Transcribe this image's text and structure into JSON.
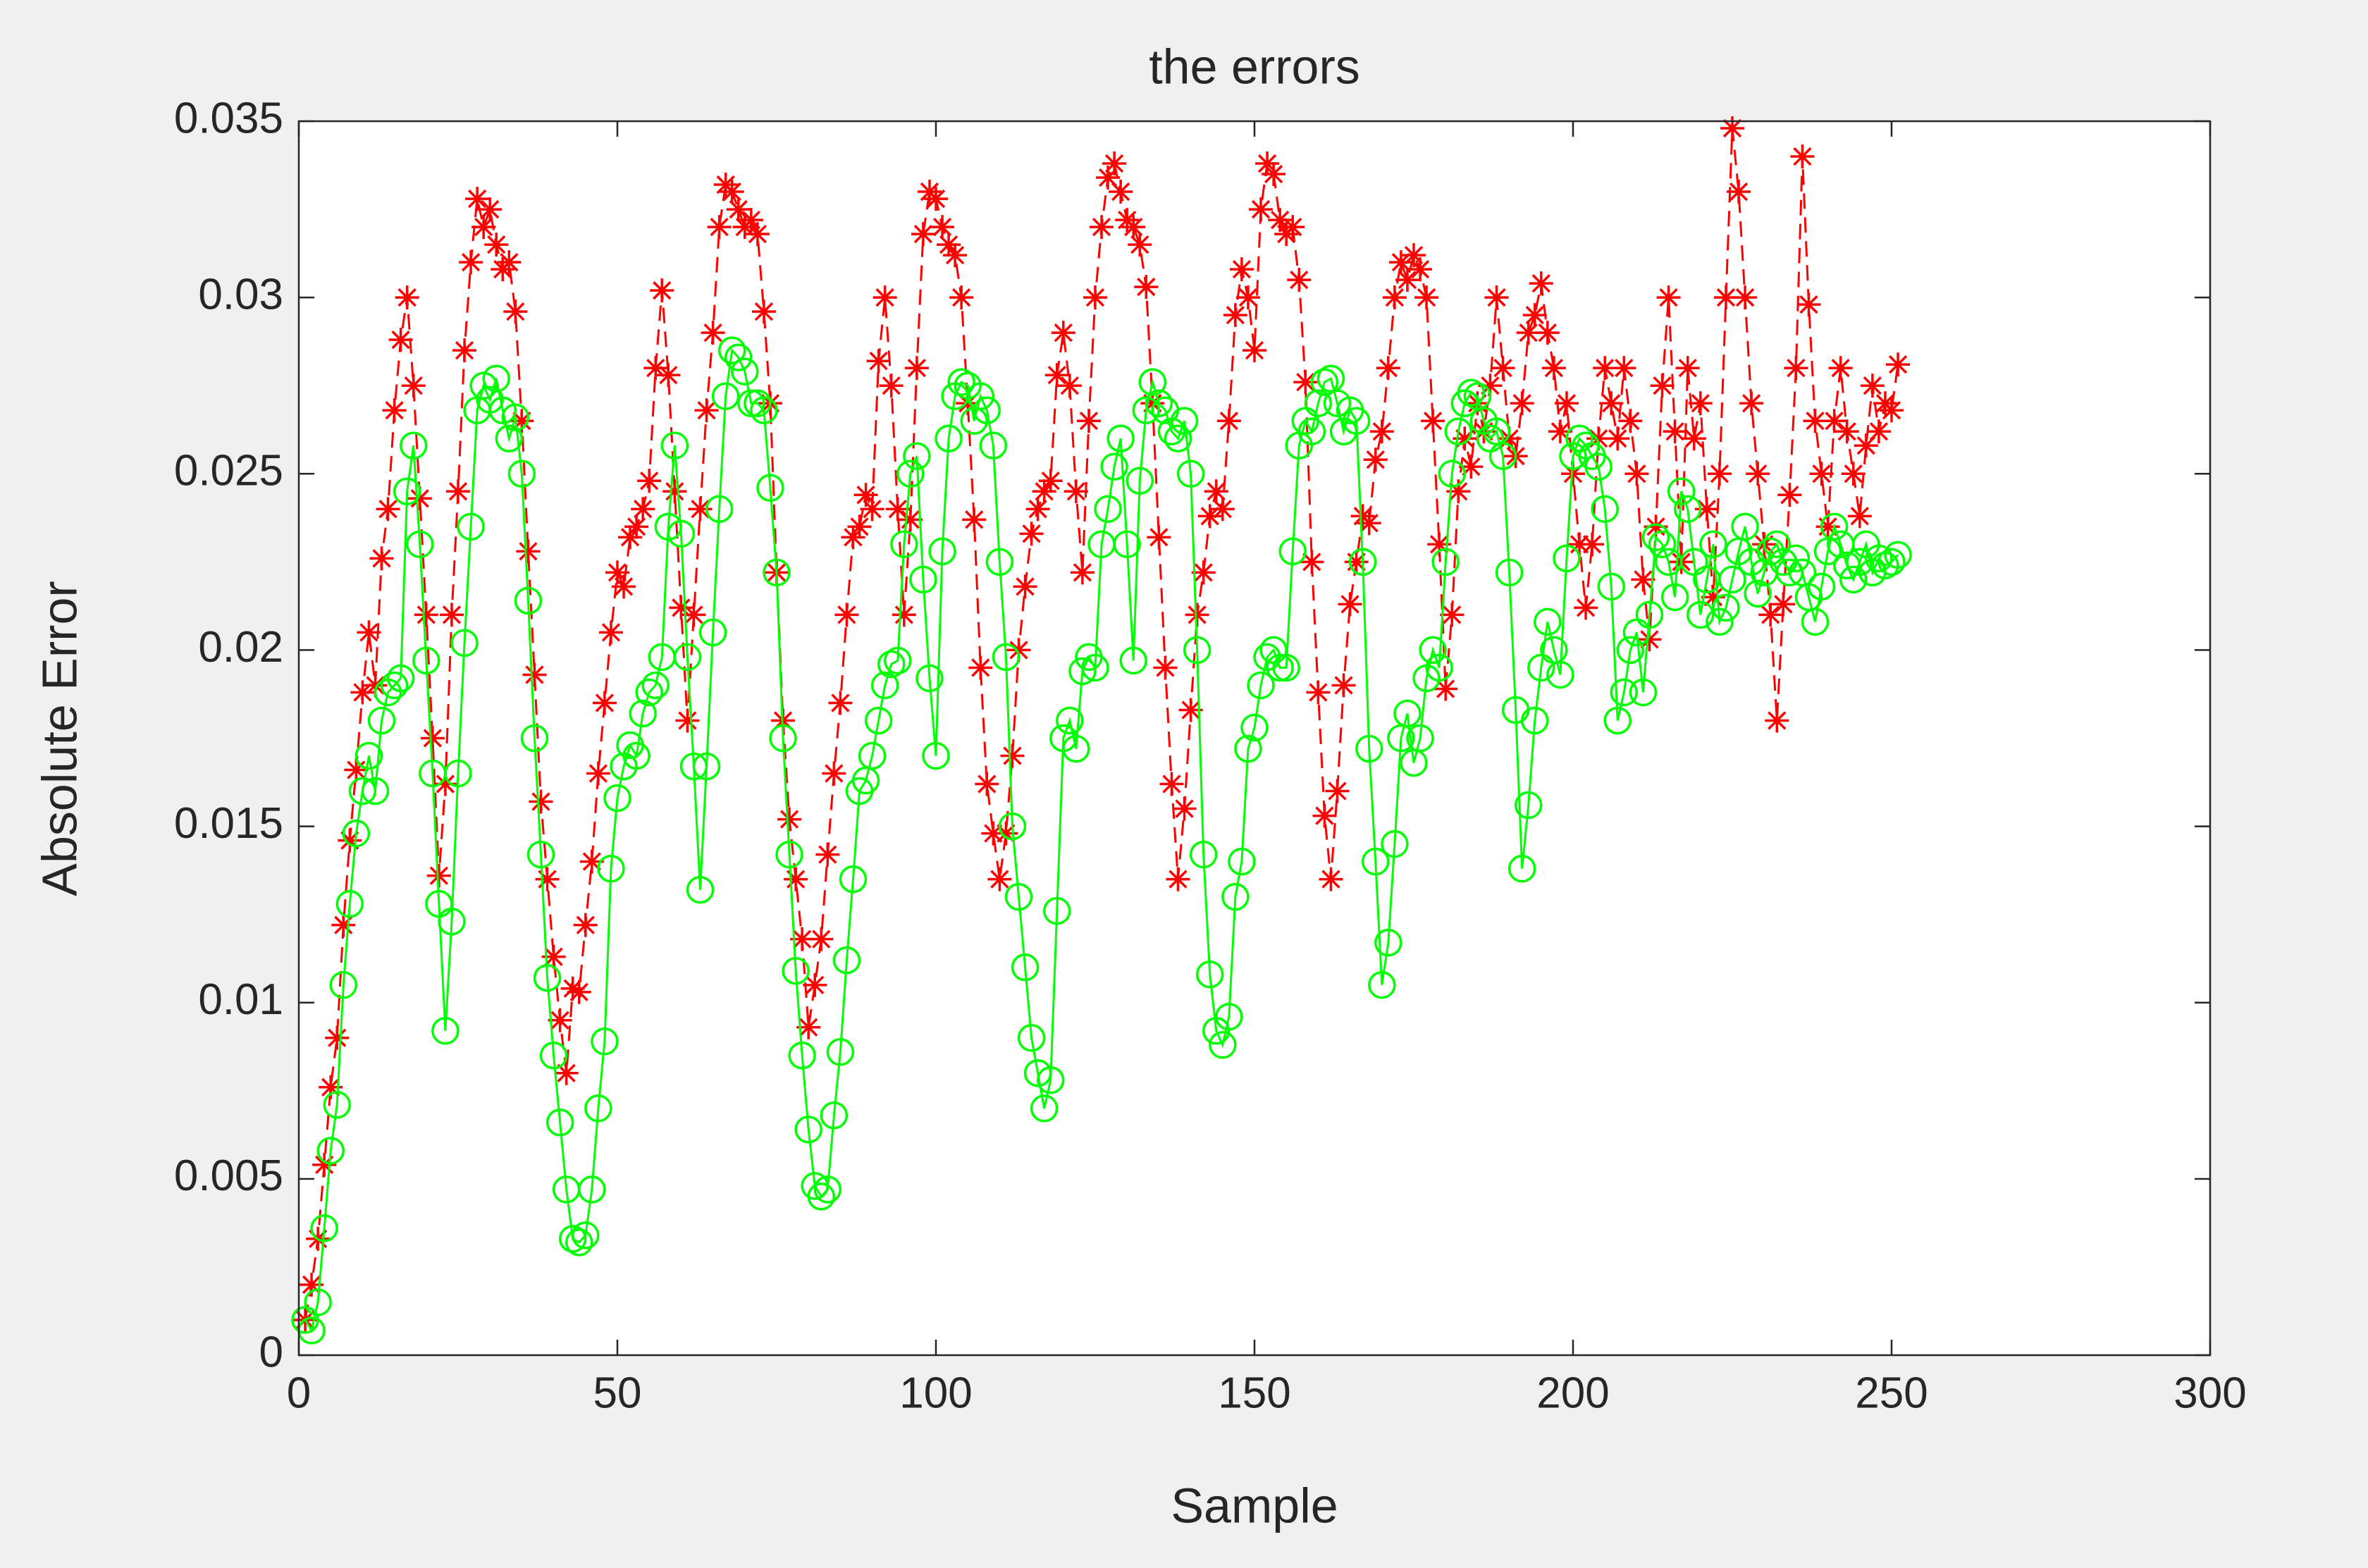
{
  "chart_data": {
    "type": "line",
    "title": "the errors",
    "xlabel": "Sample",
    "ylabel": "Absolute Error",
    "xlim": [
      0,
      300
    ],
    "ylim": [
      0,
      0.035
    ],
    "xticks": [
      0,
      50,
      100,
      150,
      200,
      250,
      300
    ],
    "yticks": [
      0,
      0.005,
      0.01,
      0.015,
      0.02,
      0.025,
      0.03,
      0.035
    ],
    "x": [
      1,
      2,
      3,
      4,
      5,
      6,
      7,
      8,
      9,
      10,
      11,
      12,
      13,
      14,
      15,
      16,
      17,
      18,
      19,
      20,
      21,
      22,
      23,
      24,
      25,
      26,
      27,
      28,
      29,
      30,
      31,
      32,
      33,
      34,
      35,
      36,
      37,
      38,
      39,
      40,
      41,
      42,
      43,
      44,
      45,
      46,
      47,
      48,
      49,
      50,
      51,
      52,
      53,
      54,
      55,
      56,
      57,
      58,
      59,
      60,
      61,
      62,
      63,
      64,
      65,
      66,
      67,
      68,
      69,
      70,
      71,
      72,
      73,
      74,
      75,
      76,
      77,
      78,
      79,
      80,
      81,
      82,
      83,
      84,
      85,
      86,
      87,
      88,
      89,
      90,
      91,
      92,
      93,
      94,
      95,
      96,
      97,
      98,
      99,
      100,
      101,
      102,
      103,
      104,
      105,
      106,
      107,
      108,
      109,
      110,
      111,
      112,
      113,
      114,
      115,
      116,
      117,
      118,
      119,
      120,
      121,
      122,
      123,
      124,
      125,
      126,
      127,
      128,
      129,
      130,
      131,
      132,
      133,
      134,
      135,
      136,
      137,
      138,
      139,
      140,
      141,
      142,
      143,
      144,
      145,
      146,
      147,
      148,
      149,
      150,
      151,
      152,
      153,
      154,
      155,
      156,
      157,
      158,
      159,
      160,
      161,
      162,
      163,
      164,
      165,
      166,
      167,
      168,
      169,
      170,
      171,
      172,
      173,
      174,
      175,
      176,
      177,
      178,
      179,
      180,
      181,
      182,
      183,
      184,
      185,
      186,
      187,
      188,
      189,
      190,
      191,
      192,
      193,
      194,
      195,
      196,
      197,
      198,
      199,
      200,
      201,
      202,
      203,
      204,
      205,
      206,
      207,
      208,
      209,
      210,
      211,
      212,
      213,
      214,
      215,
      216,
      217,
      218,
      219,
      220,
      221,
      222,
      223,
      224,
      225,
      226,
      227,
      228,
      229,
      230,
      231,
      232,
      233,
      234,
      235,
      236,
      237,
      238,
      239,
      240,
      241,
      242,
      243,
      244,
      245,
      246,
      247,
      248,
      249,
      250,
      251
    ],
    "series": [
      {
        "color": "#ff0000",
        "marker": "star",
        "dashed": true,
        "values": [
          0.001,
          0.002,
          0.0033,
          0.0054,
          0.0076,
          0.009,
          0.0122,
          0.0146,
          0.0166,
          0.0188,
          0.0205,
          0.019,
          0.0226,
          0.024,
          0.0268,
          0.0288,
          0.03,
          0.0275,
          0.0243,
          0.021,
          0.0175,
          0.0136,
          0.0162,
          0.021,
          0.0245,
          0.0285,
          0.031,
          0.0328,
          0.032,
          0.0325,
          0.0315,
          0.0308,
          0.031,
          0.0296,
          0.0265,
          0.0228,
          0.0193,
          0.0157,
          0.0135,
          0.0113,
          0.0095,
          0.008,
          0.0104,
          0.0103,
          0.0122,
          0.014,
          0.0165,
          0.0185,
          0.0205,
          0.0222,
          0.0218,
          0.0232,
          0.0235,
          0.024,
          0.0248,
          0.028,
          0.0302,
          0.0278,
          0.0245,
          0.0212,
          0.018,
          0.021,
          0.024,
          0.0268,
          0.029,
          0.032,
          0.0332,
          0.033,
          0.0325,
          0.032,
          0.0322,
          0.0318,
          0.0296,
          0.027,
          0.0222,
          0.018,
          0.0152,
          0.0135,
          0.0118,
          0.0093,
          0.0105,
          0.0118,
          0.0142,
          0.0165,
          0.0185,
          0.021,
          0.0232,
          0.0235,
          0.0244,
          0.024,
          0.0282,
          0.03,
          0.0275,
          0.024,
          0.021,
          0.0237,
          0.028,
          0.0318,
          0.033,
          0.0328,
          0.032,
          0.0315,
          0.0312,
          0.03,
          0.027,
          0.0237,
          0.0195,
          0.0162,
          0.0148,
          0.0135,
          0.0148,
          0.017,
          0.02,
          0.0218,
          0.0233,
          0.024,
          0.0245,
          0.0248,
          0.0278,
          0.029,
          0.0275,
          0.0245,
          0.0222,
          0.0265,
          0.03,
          0.032,
          0.0334,
          0.0338,
          0.033,
          0.0322,
          0.032,
          0.0315,
          0.0303,
          0.027,
          0.0232,
          0.0195,
          0.0162,
          0.0135,
          0.0155,
          0.0183,
          0.021,
          0.0222,
          0.0238,
          0.0245,
          0.024,
          0.0265,
          0.0295,
          0.0308,
          0.03,
          0.0285,
          0.0325,
          0.0338,
          0.0335,
          0.0322,
          0.0318,
          0.032,
          0.0305,
          0.0276,
          0.0225,
          0.0188,
          0.0153,
          0.0135,
          0.016,
          0.019,
          0.0213,
          0.0225,
          0.0238,
          0.0236,
          0.0254,
          0.0262,
          0.028,
          0.03,
          0.031,
          0.0305,
          0.0312,
          0.0308,
          0.03,
          0.0265,
          0.023,
          0.0189,
          0.021,
          0.0245,
          0.026,
          0.0252,
          0.027,
          0.0262,
          0.0275,
          0.03,
          0.028,
          0.026,
          0.0255,
          0.027,
          0.029,
          0.0295,
          0.0304,
          0.029,
          0.028,
          0.0262,
          0.027,
          0.025,
          0.023,
          0.0212,
          0.023,
          0.026,
          0.028,
          0.027,
          0.026,
          0.028,
          0.0265,
          0.025,
          0.022,
          0.0203,
          0.0235,
          0.0275,
          0.03,
          0.0262,
          0.0225,
          0.028,
          0.026,
          0.027,
          0.024,
          0.0215,
          0.025,
          0.03,
          0.0348,
          0.033,
          0.03,
          0.027,
          0.025,
          0.023,
          0.021,
          0.018,
          0.0213,
          0.0244,
          0.028,
          0.034,
          0.0298,
          0.0265,
          0.025,
          0.0235,
          0.0265,
          0.028,
          0.0262,
          0.025,
          0.0238,
          0.0258,
          0.0275,
          0.0262,
          0.027,
          0.0268,
          0.0281
        ]
      },
      {
        "color": "#00ff00",
        "marker": "circle",
        "dashed": false,
        "values": [
          0.001,
          0.0007,
          0.0015,
          0.0036,
          0.0058,
          0.0071,
          0.0105,
          0.0128,
          0.0148,
          0.016,
          0.017,
          0.016,
          0.018,
          0.0188,
          0.019,
          0.0192,
          0.0245,
          0.0258,
          0.023,
          0.0197,
          0.0165,
          0.0128,
          0.0092,
          0.0123,
          0.0165,
          0.0202,
          0.0235,
          0.0268,
          0.0275,
          0.0271,
          0.0277,
          0.0268,
          0.026,
          0.0266,
          0.025,
          0.0214,
          0.0175,
          0.0142,
          0.0107,
          0.0085,
          0.0066,
          0.0047,
          0.0033,
          0.0032,
          0.0034,
          0.0047,
          0.007,
          0.0089,
          0.0138,
          0.0158,
          0.0167,
          0.0173,
          0.017,
          0.0182,
          0.0188,
          0.019,
          0.0198,
          0.0235,
          0.0258,
          0.0233,
          0.0198,
          0.0167,
          0.0132,
          0.0167,
          0.0205,
          0.024,
          0.0272,
          0.0285,
          0.0283,
          0.0279,
          0.027,
          0.027,
          0.0268,
          0.0246,
          0.0222,
          0.0175,
          0.0142,
          0.0109,
          0.0085,
          0.0064,
          0.0048,
          0.0045,
          0.0047,
          0.0068,
          0.0086,
          0.0112,
          0.0135,
          0.016,
          0.0163,
          0.017,
          0.018,
          0.019,
          0.0196,
          0.0197,
          0.023,
          0.025,
          0.0255,
          0.022,
          0.0192,
          0.017,
          0.0228,
          0.026,
          0.0272,
          0.0276,
          0.0275,
          0.0265,
          0.0272,
          0.0268,
          0.0258,
          0.0225,
          0.0198,
          0.015,
          0.013,
          0.011,
          0.009,
          0.008,
          0.007,
          0.0078,
          0.0126,
          0.0175,
          0.018,
          0.0172,
          0.0194,
          0.0198,
          0.0195,
          0.023,
          0.024,
          0.0252,
          0.026,
          0.023,
          0.0197,
          0.0248,
          0.0268,
          0.0276,
          0.027,
          0.0268,
          0.0262,
          0.026,
          0.0265,
          0.025,
          0.02,
          0.0142,
          0.0108,
          0.0092,
          0.0088,
          0.0096,
          0.013,
          0.014,
          0.0172,
          0.0178,
          0.019,
          0.0198,
          0.02,
          0.0195,
          0.0195,
          0.0228,
          0.0258,
          0.0265,
          0.0262,
          0.027,
          0.0276,
          0.0277,
          0.027,
          0.0262,
          0.0268,
          0.0265,
          0.0225,
          0.0172,
          0.014,
          0.0105,
          0.0117,
          0.0145,
          0.0175,
          0.0182,
          0.0168,
          0.0175,
          0.0192,
          0.02,
          0.0195,
          0.0225,
          0.025,
          0.0262,
          0.027,
          0.0273,
          0.0272,
          0.0265,
          0.026,
          0.0262,
          0.0255,
          0.0222,
          0.0183,
          0.0138,
          0.0156,
          0.018,
          0.0195,
          0.0208,
          0.02,
          0.0193,
          0.0226,
          0.0255,
          0.026,
          0.0258,
          0.0255,
          0.0252,
          0.024,
          0.0218,
          0.018,
          0.0188,
          0.02,
          0.0205,
          0.0188,
          0.021,
          0.0232,
          0.023,
          0.0225,
          0.0215,
          0.0245,
          0.024,
          0.0225,
          0.021,
          0.022,
          0.023,
          0.0208,
          0.0212,
          0.022,
          0.0228,
          0.0235,
          0.0225,
          0.0216,
          0.0222,
          0.0228,
          0.023,
          0.0225,
          0.0222,
          0.0226,
          0.0222,
          0.0215,
          0.0208,
          0.0218,
          0.0228,
          0.0235,
          0.023,
          0.0224,
          0.022,
          0.0225,
          0.023,
          0.0222,
          0.0226,
          0.0224,
          0.0225,
          0.0227
        ]
      }
    ]
  }
}
